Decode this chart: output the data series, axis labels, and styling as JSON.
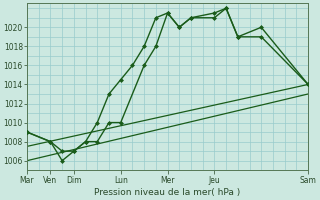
{
  "background_color": "#cce8e0",
  "grid_color": "#99cccc",
  "line_color": "#1a5c1a",
  "x_labels": [
    "Mar",
    "Ven",
    "Dim",
    "Lun",
    "Mer",
    "Jeu",
    "Sam"
  ],
  "x_ticks_pos": [
    0,
    1,
    2,
    4,
    6,
    8,
    12
  ],
  "x_total": 12,
  "xlabel": "Pression niveau de la mer( hPa )",
  "ylim": [
    1005.0,
    1022.5
  ],
  "yticks": [
    1006,
    1008,
    1010,
    1012,
    1014,
    1016,
    1018,
    1020
  ],
  "series1_x": [
    0,
    1,
    1.5,
    2,
    2.5,
    3,
    3.5,
    4,
    4.5,
    5,
    5.5,
    6,
    6.5,
    7,
    8,
    8.5,
    9,
    10,
    12
  ],
  "series1_y": [
    1009,
    1008,
    1007,
    1007,
    1008,
    1010,
    1013,
    1014.5,
    1016,
    1018,
    1021,
    1021.5,
    1020,
    1021,
    1021,
    1022,
    1019,
    1019,
    1014
  ],
  "series2_x": [
    0,
    1,
    1.5,
    2,
    2.5,
    3,
    3.5,
    4,
    5,
    5.5,
    6,
    6.5,
    7,
    8,
    8.5,
    9,
    10,
    12
  ],
  "series2_y": [
    1009,
    1008,
    1006,
    1007,
    1008,
    1008,
    1010,
    1010,
    1016,
    1018,
    1021.5,
    1020,
    1021,
    1021.5,
    1022,
    1019,
    1020,
    1014
  ],
  "line1_x": [
    0,
    12
  ],
  "line1_y": [
    1007.5,
    1014.0
  ],
  "line2_x": [
    0,
    12
  ],
  "line2_y": [
    1006.0,
    1013.0
  ]
}
